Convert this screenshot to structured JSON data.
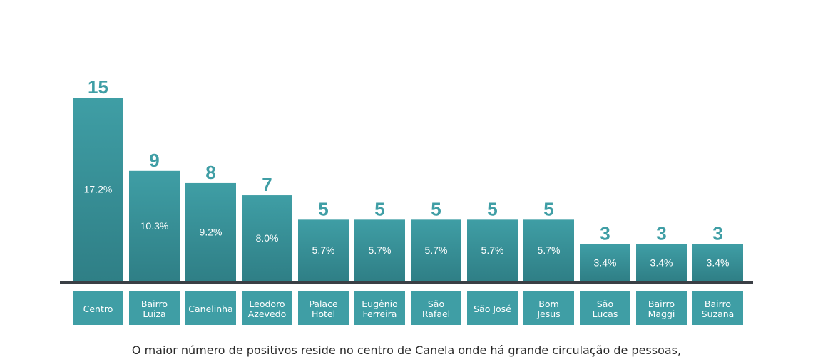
{
  "chart_data": {
    "type": "bar",
    "categories": [
      "Centro",
      "Bairro\nLuiza",
      "Canelinha",
      "Leodoro\nAzevedo",
      "Palace\nHotel",
      "Eugênio\nFerreira",
      "São\nRafael",
      "São José",
      "Bom\nJesus",
      "São\nLucas",
      "Bairro\nMaggi",
      "Bairro\nSuzana"
    ],
    "values": [
      15,
      9,
      8,
      7,
      5,
      5,
      5,
      5,
      5,
      3,
      3,
      3
    ],
    "percent_labels": [
      "17.2%",
      "10.3%",
      "9.2%",
      "8.0%",
      "5.7%",
      "5.7%",
      "5.7%",
      "5.7%",
      "5.7%",
      "3.4%",
      "3.4%",
      "3.4%"
    ],
    "ylim": [
      0,
      15
    ],
    "grid": false,
    "colors": {
      "bar": "#3f9ea5",
      "bar_dark": "#2f7f86",
      "value_label": "#3f9ea5",
      "axis": "#3a3f45",
      "text_on_bar": "#ffffff"
    }
  },
  "caption": "O maior número de positivos reside no centro de Canela onde há grande circulação de pessoas,"
}
